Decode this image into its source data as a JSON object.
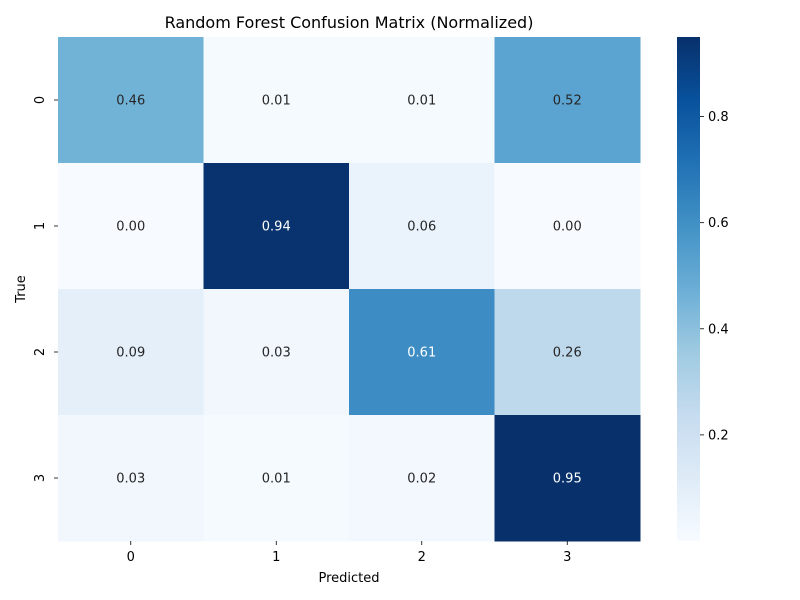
{
  "chart_data": {
    "type": "heatmap",
    "title": "Random Forest Confusion Matrix (Normalized)",
    "xlabel": "Predicted",
    "ylabel": "True",
    "x_categories": [
      "0",
      "1",
      "2",
      "3"
    ],
    "y_categories": [
      "0",
      "1",
      "2",
      "3"
    ],
    "values": [
      [
        0.46,
        0.01,
        0.01,
        0.52
      ],
      [
        0.0,
        0.94,
        0.06,
        0.0
      ],
      [
        0.09,
        0.03,
        0.61,
        0.26
      ],
      [
        0.03,
        0.01,
        0.02,
        0.95
      ]
    ],
    "value_format": "2 decimals",
    "colormap": "Blues",
    "colorbar": {
      "range": [
        0.0,
        0.95
      ],
      "ticks": [
        0.2,
        0.4,
        0.6,
        0.8
      ]
    },
    "colorscale": [
      "#f7fbff",
      "#deebf7",
      "#c6dbef",
      "#9ecae1",
      "#6baed6",
      "#4292c6",
      "#2171b5",
      "#08519c",
      "#08306b"
    ],
    "annotation_colors": {
      "light": "#ffffff",
      "dark": "#262626"
    },
    "grid": false
  }
}
